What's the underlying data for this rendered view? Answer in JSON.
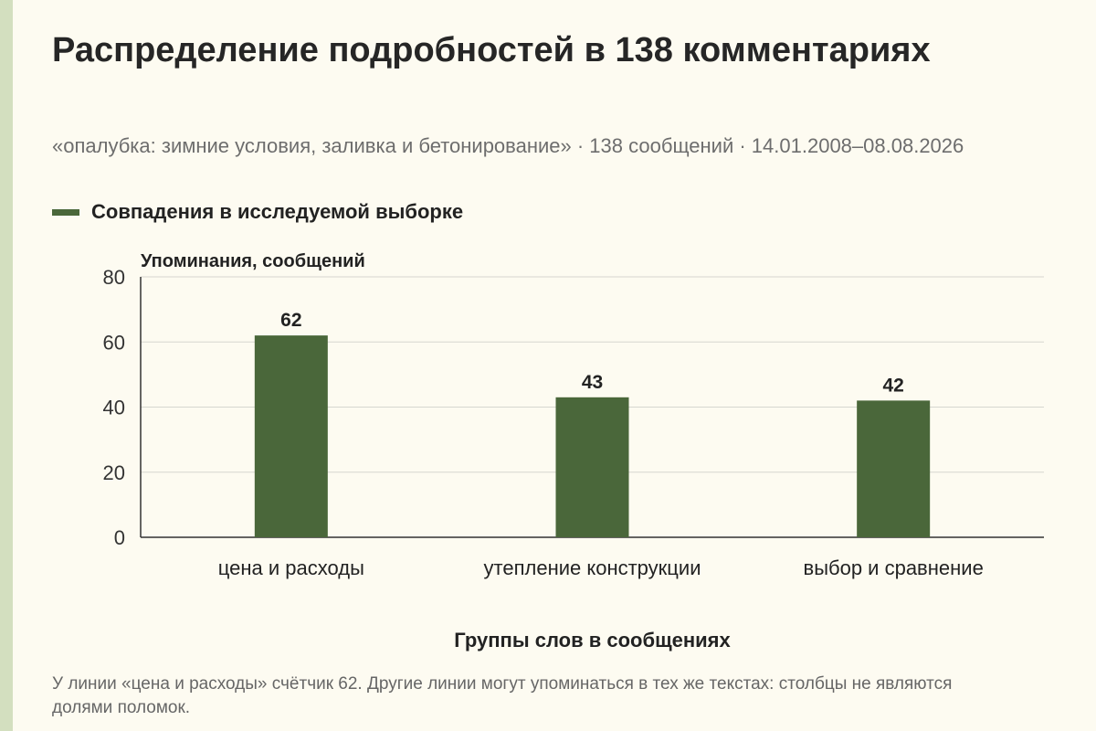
{
  "title": "Распределение подробностей в 138 комментариях",
  "subtitle": "«опалубка: зимние условия, заливка и бетонирование» · 138 сообщений · 14.01.2008–08.08.2026",
  "legend": {
    "label": "Совпадения в исследуемой выборке",
    "color": "#4a673a"
  },
  "note": "У линии «цена и расходы» счётчик 62. Другие линии могут упоминаться в тех же текстах: столбцы не являются долями поломок.",
  "chart_data": {
    "type": "bar",
    "categories": [
      "цена и расходы",
      "утепление конструкции",
      "выбор и сравнение"
    ],
    "series": [
      {
        "name": "Совпадения в исследуемой выборке",
        "values": [
          62,
          43,
          42
        ],
        "color": "#4a673a"
      }
    ],
    "ylabel": "Упоминания, сообщений",
    "xlabel": "Группы слов в сообщениях",
    "ylim": [
      0,
      80
    ],
    "yticks": [
      0,
      20,
      40,
      60,
      80
    ],
    "grid": true,
    "legend_position": "top-left"
  }
}
